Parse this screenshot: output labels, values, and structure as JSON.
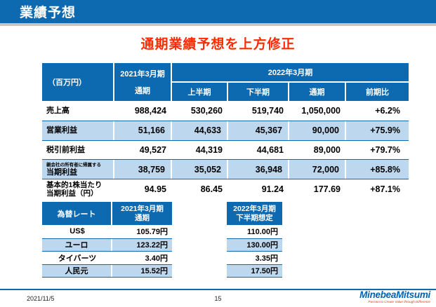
{
  "page": {
    "title": "業績予想",
    "subtitle": "通期業績予想を上方修正"
  },
  "colors": {
    "primary_blue": "#0d69b0",
    "stripe_blue": "#bdd7ee",
    "subtitle_red": "#ff2b00",
    "logo_blue": "#0063b2",
    "logo_red": "#e8380d"
  },
  "forecast_table": {
    "unit_label": "（百万円）",
    "col_2021": {
      "line1": "2021年3月期",
      "line2": "通期"
    },
    "group_2022": "2022年3月期",
    "subheaders": [
      "上半期",
      "下半期",
      "通期",
      "前期比"
    ],
    "rows": [
      {
        "label": "売上高",
        "values": [
          "988,424",
          "530,260",
          "519,740",
          "1,050,000",
          "+6.2%"
        ]
      },
      {
        "label": "営業利益",
        "values": [
          "51,166",
          "44,633",
          "45,367",
          "90,000",
          "+75.9%"
        ]
      },
      {
        "label": "税引前利益",
        "values": [
          "49,527",
          "44,319",
          "44,681",
          "89,000",
          "+79.7%"
        ]
      },
      {
        "label_small": "親会社の所有者に帰属する",
        "label": "当期利益",
        "values": [
          "38,759",
          "35,052",
          "36,948",
          "72,000",
          "+85.8%"
        ]
      },
      {
        "label": "基本的1株当たり",
        "label2": "当期利益（円）",
        "values": [
          "94.95",
          "86.45",
          "91.24",
          "177.69",
          "+87.1%"
        ]
      }
    ]
  },
  "fx_table": {
    "header": "為替レート",
    "col_2021": {
      "line1": "2021年3月期",
      "line2": "通期"
    },
    "col_2022": {
      "line1": "2022年3月期",
      "line2": "下半期想定"
    },
    "rows": [
      {
        "currency": "US$",
        "rate_2021": "105.79円",
        "rate_2022": "110.00円"
      },
      {
        "currency": "ユーロ",
        "rate_2021": "123.22円",
        "rate_2022": "130.00円"
      },
      {
        "currency": "タイバーツ",
        "rate_2021": "3.40円",
        "rate_2022": "3.35円"
      },
      {
        "currency": "人民元",
        "rate_2021": "15.52円",
        "rate_2022": "17.50円"
      }
    ]
  },
  "footer": {
    "date": "2021/11/5",
    "page_number": "15",
    "logo_text": "MinebeaMitsumi",
    "logo_tagline": "Passion to Create Value through Difference"
  }
}
